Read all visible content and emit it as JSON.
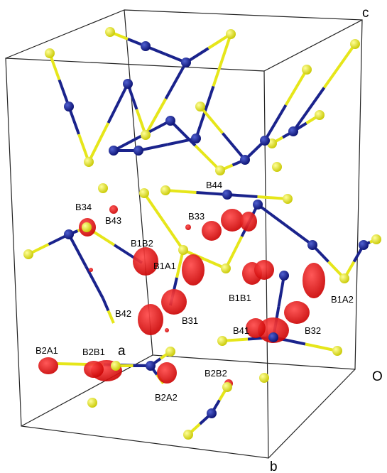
{
  "axes": {
    "c": "c",
    "a": "a",
    "O": "O",
    "b": "b"
  },
  "labels": [
    "B34",
    "B43",
    "B44",
    "B33",
    "B1B2",
    "B1A1",
    "B1B1",
    "B1A2",
    "B42",
    "B31",
    "B41",
    "B32",
    "B2A1",
    "B2B1",
    "B2B2",
    "B2A2"
  ]
}
